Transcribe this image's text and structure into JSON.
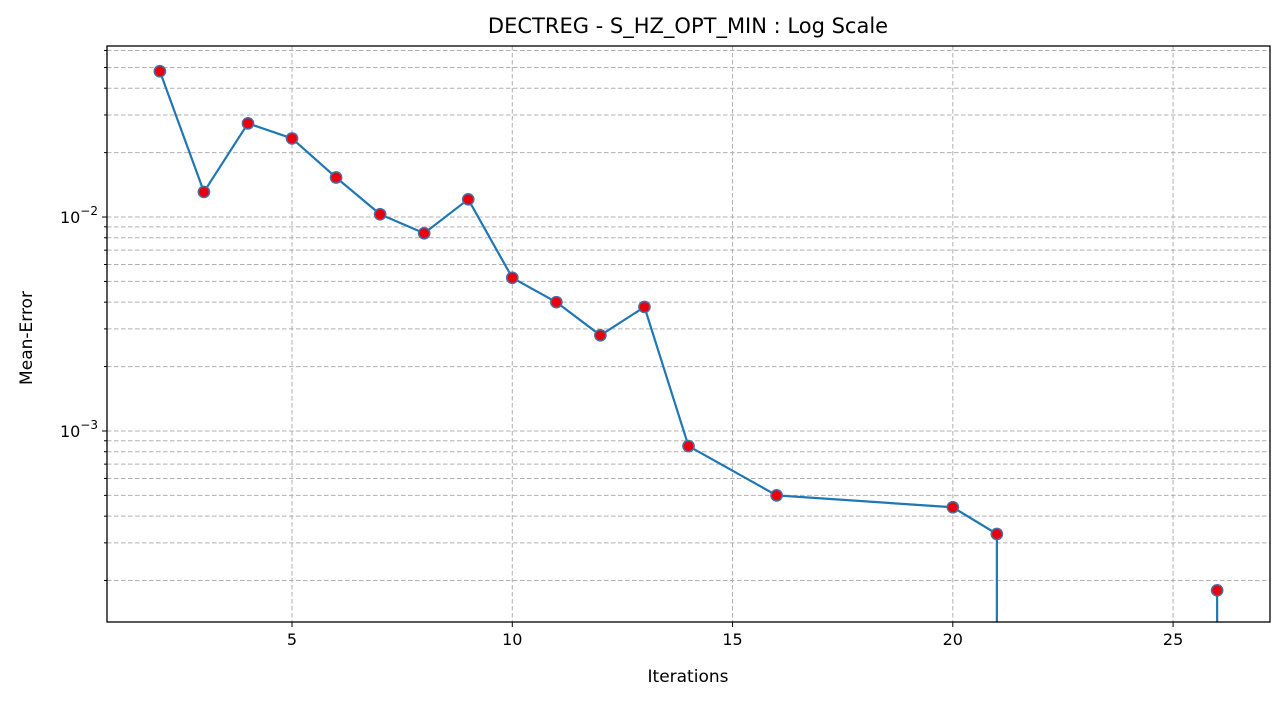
{
  "chart_data": {
    "type": "line",
    "title": "DECTREG - S_HZ_OPT_MIN : Log Scale",
    "xlabel": "Iterations",
    "ylabel": "Mean-Error",
    "yscale": "log",
    "xlim": [
      0.8,
      27.2
    ],
    "ylim": [
      0.000128,
      0.063
    ],
    "x_ticks": [
      5,
      10,
      15,
      20,
      25
    ],
    "y_ticks": [
      {
        "value": 0.001,
        "base": "10",
        "exponent": "−3"
      },
      {
        "value": 0.01,
        "base": "10",
        "exponent": "−2"
      }
    ],
    "grid": true,
    "grid_style": "dashed",
    "legend": "none",
    "series": [
      {
        "line_color": "#1f77b4",
        "marker_fill": "#e8000b",
        "marker_edge": "#4a6fa5",
        "x": [
          2,
          3,
          4,
          5,
          6,
          7,
          8,
          9,
          10,
          11,
          12,
          13,
          14,
          16,
          20,
          21,
          26
        ],
        "y": [
          0.048,
          0.0131,
          0.0274,
          0.0233,
          0.0153,
          0.0103,
          0.0084,
          0.0121,
          0.0052,
          0.004,
          0.0028,
          0.0038,
          0.00085,
          0.0005,
          0.00044,
          0.00033,
          0.00018
        ],
        "drops_to_axis_after": [
          21
        ],
        "drops_from_axis_before": [
          26
        ]
      }
    ]
  }
}
